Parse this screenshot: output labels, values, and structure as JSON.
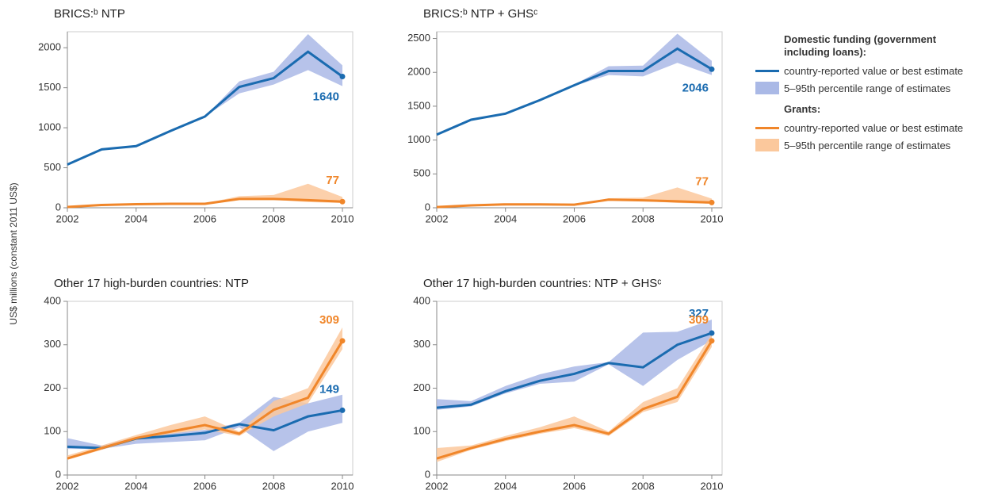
{
  "y_label": "US$ millions (constant 2011 US$)",
  "legend": {
    "groups": [
      {
        "title": "Domestic funding (government including loans):",
        "color": "#1a6bb0",
        "band_color": "#aab9e6",
        "items": [
          "country-reported value or best estimate",
          "5–95th percentile range of estimates"
        ]
      },
      {
        "title": "Grants:",
        "color": "#f0862a",
        "band_color": "#fbc89c",
        "items": [
          "country-reported value or best estimate",
          "5–95th percentile range of estimates"
        ]
      }
    ]
  },
  "chart_data": [
    {
      "type": "line",
      "title": "BRICS:ᵇ NTP",
      "x": [
        2002,
        2003,
        2004,
        2005,
        2006,
        2007,
        2008,
        2009,
        2010
      ],
      "xlim": [
        2002,
        2010.3
      ],
      "xticks": [
        2002,
        2004,
        2006,
        2008,
        2010
      ],
      "ylim": [
        0,
        2200
      ],
      "yticks": [
        0,
        500,
        1000,
        1500,
        2000
      ],
      "series": [
        {
          "color": "#1a6bb0",
          "band_color": "#aab9e6",
          "values": [
            540,
            730,
            770,
            960,
            1140,
            1510,
            1620,
            1950,
            1640
          ],
          "lower": [
            540,
            730,
            760,
            960,
            1140,
            1430,
            1540,
            1720,
            1520
          ],
          "upper": [
            540,
            730,
            780,
            960,
            1140,
            1580,
            1700,
            2170,
            1780
          ]
        },
        {
          "color": "#f0862a",
          "band_color": "#fbc89c",
          "values": [
            10,
            35,
            45,
            50,
            50,
            110,
            110,
            95,
            77
          ],
          "lower": [
            10,
            35,
            45,
            50,
            50,
            100,
            100,
            70,
            60
          ],
          "upper": [
            10,
            35,
            45,
            50,
            55,
            145,
            160,
            300,
            135
          ]
        }
      ]
    },
    {
      "type": "line",
      "title": "BRICS:ᵇ NTP + GHSᶜ",
      "x": [
        2002,
        2003,
        2004,
        2005,
        2006,
        2007,
        2008,
        2009,
        2010
      ],
      "xlim": [
        2002,
        2010.3
      ],
      "xticks": [
        2002,
        2004,
        2006,
        2008,
        2010
      ],
      "ylim": [
        0,
        2600
      ],
      "yticks": [
        0,
        500,
        1000,
        1500,
        2000,
        2500
      ],
      "series": [
        {
          "color": "#1a6bb0",
          "band_color": "#aab9e6",
          "values": [
            1080,
            1300,
            1390,
            1590,
            1810,
            2020,
            2020,
            2350,
            2046
          ],
          "lower": [
            1080,
            1300,
            1390,
            1590,
            1800,
            1960,
            1940,
            2140,
            1960
          ],
          "upper": [
            1080,
            1300,
            1390,
            1590,
            1820,
            2090,
            2100,
            2570,
            2170
          ]
        },
        {
          "color": "#f0862a",
          "band_color": "#fbc89c",
          "values": [
            10,
            35,
            50,
            50,
            45,
            120,
            110,
            95,
            77
          ],
          "lower": [
            10,
            35,
            50,
            50,
            45,
            105,
            100,
            70,
            60
          ],
          "upper": [
            10,
            35,
            50,
            50,
            50,
            140,
            150,
            300,
            135
          ]
        }
      ]
    },
    {
      "type": "line",
      "title": "Other 17 high-burden countries: NTP",
      "x": [
        2002,
        2003,
        2004,
        2005,
        2006,
        2007,
        2008,
        2009,
        2010
      ],
      "xlim": [
        2002,
        2010.3
      ],
      "xticks": [
        2002,
        2004,
        2006,
        2008,
        2010
      ],
      "ylim": [
        0,
        400
      ],
      "yticks": [
        0,
        100,
        200,
        300,
        400
      ],
      "series": [
        {
          "color": "#1a6bb0",
          "band_color": "#aab9e6",
          "values": [
            65,
            62,
            84,
            90,
            97,
            117,
            103,
            135,
            149
          ],
          "lower": [
            60,
            60,
            72,
            76,
            80,
            110,
            55,
            100,
            120
          ],
          "upper": [
            85,
            68,
            88,
            96,
            104,
            120,
            180,
            165,
            185
          ]
        },
        {
          "color": "#f0862a",
          "band_color": "#fbc89c",
          "values": [
            38,
            62,
            85,
            100,
            115,
            95,
            150,
            178,
            309
          ],
          "lower": [
            35,
            58,
            80,
            95,
            105,
            90,
            135,
            165,
            290
          ],
          "upper": [
            45,
            68,
            92,
            115,
            135,
            100,
            170,
            200,
            340
          ]
        }
      ]
    },
    {
      "type": "line",
      "title": "Other 17 high-burden countries: NTP + GHSᶜ",
      "x": [
        2002,
        2003,
        2004,
        2005,
        2006,
        2007,
        2008,
        2009,
        2010
      ],
      "xlim": [
        2002,
        2010.3
      ],
      "xticks": [
        2002,
        2004,
        2006,
        2008,
        2010
      ],
      "ylim": [
        0,
        400
      ],
      "yticks": [
        0,
        100,
        200,
        300,
        400
      ],
      "series": [
        {
          "color": "#1a6bb0",
          "band_color": "#aab9e6",
          "values": [
            155,
            162,
            193,
            217,
            233,
            258,
            248,
            300,
            327
          ],
          "lower": [
            150,
            158,
            188,
            210,
            215,
            255,
            205,
            265,
            310
          ],
          "upper": [
            175,
            170,
            205,
            232,
            250,
            260,
            328,
            330,
            358
          ]
        },
        {
          "color": "#f0862a",
          "band_color": "#fbc89c",
          "values": [
            38,
            62,
            83,
            100,
            115,
            95,
            152,
            180,
            309
          ],
          "lower": [
            30,
            58,
            78,
            95,
            108,
            90,
            145,
            168,
            295
          ],
          "upper": [
            62,
            68,
            90,
            110,
            135,
            100,
            168,
            200,
            325
          ]
        }
      ]
    }
  ]
}
